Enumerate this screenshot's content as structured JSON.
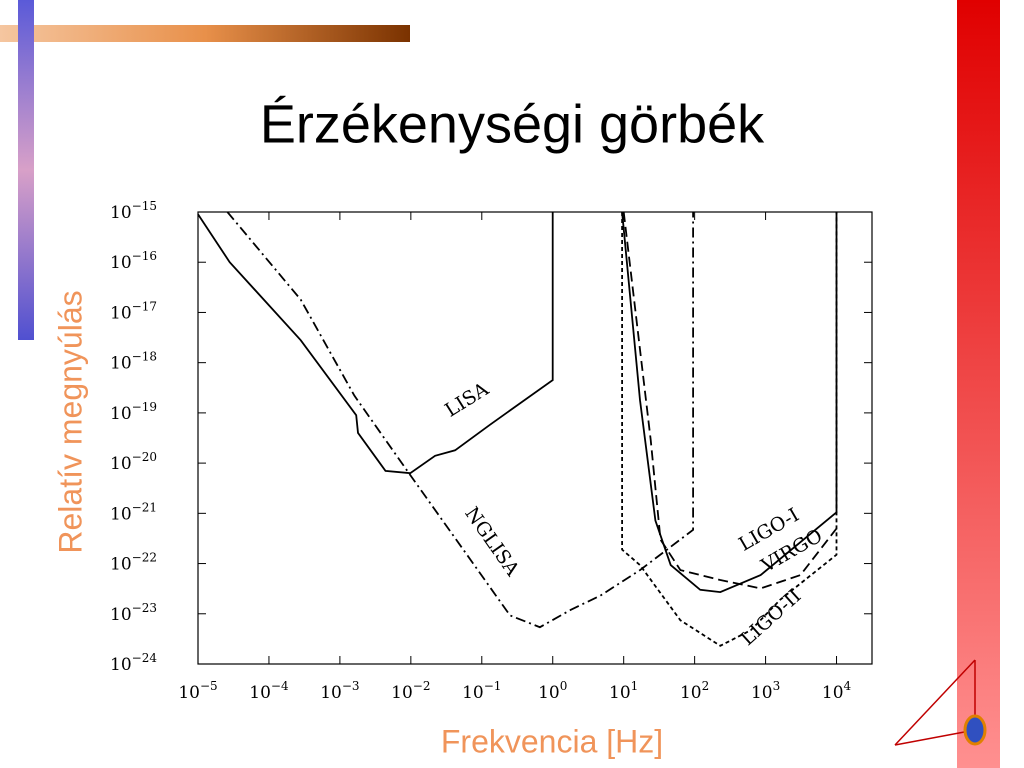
{
  "chart_data": {
    "type": "line",
    "title": "Érzékenységi görbék",
    "xlabel": "Frekvencia [Hz]",
    "ylabel": "Relatív megnyúlás",
    "xscale": "log",
    "yscale": "log",
    "xlim": [
      1e-05,
      31623
    ],
    "ylim": [
      1e-24,
      1e-15
    ],
    "xticks": [
      {
        "value": 1e-05,
        "label": "10−5"
      },
      {
        "value": 0.0001,
        "label": "10−4"
      },
      {
        "value": 0.001,
        "label": "10−3"
      },
      {
        "value": 0.01,
        "label": "10−2"
      },
      {
        "value": 0.1,
        "label": "10−1"
      },
      {
        "value": 1,
        "label": "100"
      },
      {
        "value": 10,
        "label": "101"
      },
      {
        "value": 100,
        "label": "102"
      },
      {
        "value": 1000,
        "label": "103"
      },
      {
        "value": 10000,
        "label": "104"
      }
    ],
    "yticks": [
      {
        "value": 1e-24,
        "label": "10−24"
      },
      {
        "value": 1e-23,
        "label": "10−23"
      },
      {
        "value": 1e-22,
        "label": "10−22"
      },
      {
        "value": 1e-21,
        "label": "10−21"
      },
      {
        "value": 1e-20,
        "label": "10−20"
      },
      {
        "value": 1e-19,
        "label": "10−19"
      },
      {
        "value": 1e-18,
        "label": "10−18"
      },
      {
        "value": 1e-17,
        "label": "10−17"
      },
      {
        "value": 1e-16,
        "label": "10−16"
      },
      {
        "value": 1e-15,
        "label": "10−15"
      }
    ],
    "series": [
      {
        "name": "LISA",
        "color": "#000000",
        "linestyle": "solid",
        "x": [
          1e-05,
          2.8e-05,
          0.00028,
          0.0017,
          0.0018,
          0.0044,
          0.0098,
          0.022,
          0.042,
          0.13,
          1,
          1
        ],
        "values": [
          9e-16,
          1e-16,
          2.8e-18,
          9e-20,
          4e-20,
          7e-21,
          6.3e-21,
          1.4e-20,
          1.8e-20,
          5.8e-20,
          4.5e-19,
          1e-15
        ]
      },
      {
        "name": "NGLISA",
        "color": "#000000",
        "linestyle": "dashdot",
        "x": [
          2.6e-05,
          0.00028,
          0.0016,
          0.0098,
          0.069,
          0.25,
          0.66,
          1.8,
          4.7,
          17,
          95,
          95
        ],
        "values": [
          1e-15,
          1.8e-17,
          2.2e-19,
          5.8e-21,
          1.2e-22,
          9.3e-24,
          5.4e-24,
          1.2e-23,
          2.3e-23,
          7.4e-23,
          4.7e-22,
          1e-15
        ]
      },
      {
        "name": "LIGO-I",
        "color": "#000000",
        "linestyle": "solid",
        "x": [
          9.5,
          17,
          28,
          46,
          120,
          230,
          850,
          10000,
          10000
        ],
        "values": [
          1e-15,
          1.8e-19,
          7.2e-22,
          9.3e-23,
          3e-23,
          2.7e-23,
          5.9e-23,
          1.05e-21,
          1e-15
        ]
      },
      {
        "name": "VIRGO",
        "color": "#000000",
        "linestyle": "dashed",
        "x": [
          10,
          24,
          33,
          63,
          230,
          850,
          3100,
          10000
        ],
        "values": [
          1e-15,
          2.9e-20,
          3e-22,
          7.4e-23,
          4.7e-23,
          3.2e-23,
          5.9e-23,
          5e-22
        ]
      },
      {
        "name": "LIGO-II",
        "color": "#000000",
        "linestyle": "dotted",
        "x": [
          9.5,
          9.5,
          17,
          63,
          230,
          620,
          1600,
          10000,
          10000
        ],
        "values": [
          1e-15,
          1.9e-22,
          9.3e-23,
          7.4e-24,
          2.3e-24,
          4.7e-24,
          1.9e-23,
          1.5e-22,
          1e-15
        ]
      }
    ]
  }
}
